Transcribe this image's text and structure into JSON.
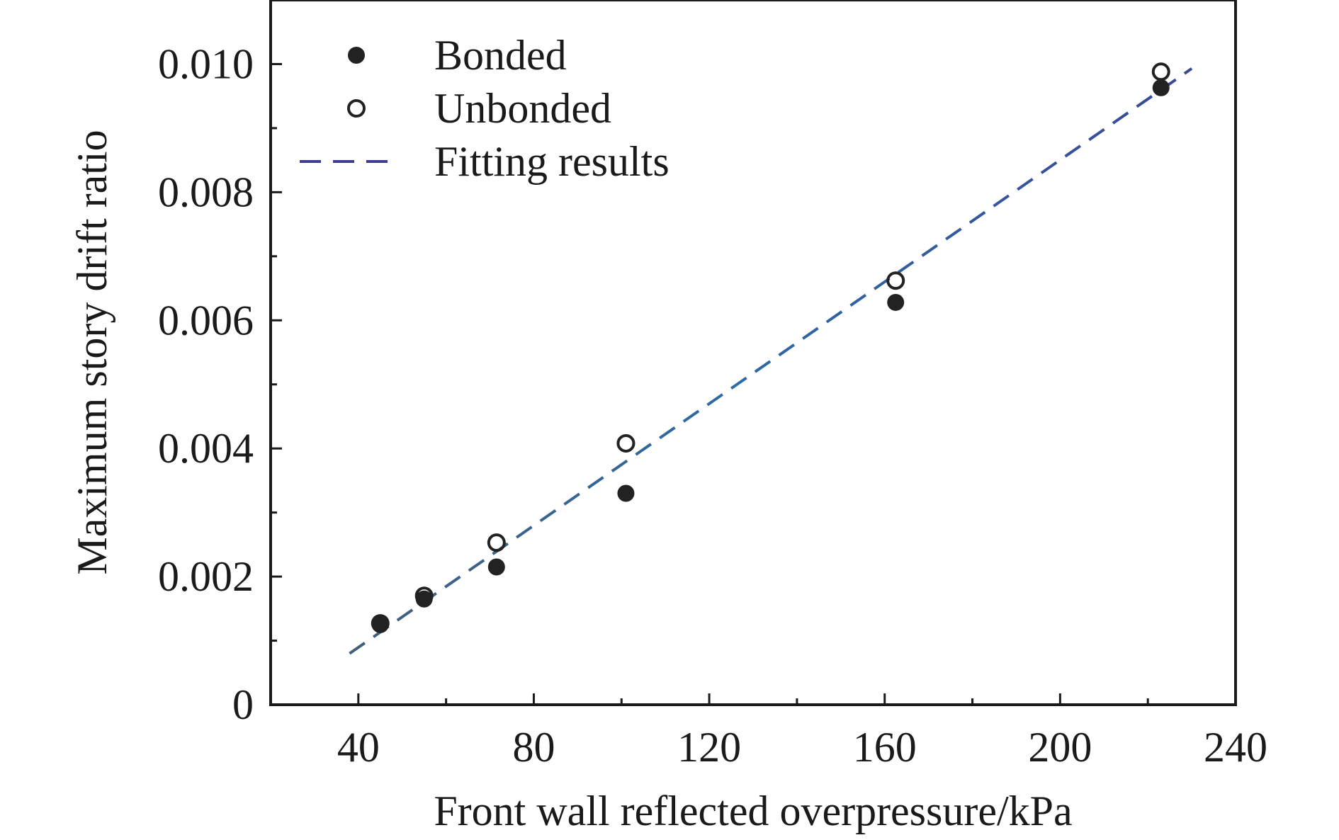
{
  "chart_data": {
    "type": "scatter",
    "title": "",
    "xlabel": "Front wall reflected overpressure/kPa",
    "ylabel": "Maximum story drift ratio",
    "xlim": [
      20,
      240
    ],
    "ylim": [
      0,
      0.011
    ],
    "x_ticks": [
      {
        "value": 40,
        "label": "40"
      },
      {
        "value": 80,
        "label": "80"
      },
      {
        "value": 120,
        "label": "120"
      },
      {
        "value": 160,
        "label": "160"
      },
      {
        "value": 200,
        "label": "200"
      },
      {
        "value": 240,
        "label": "240"
      }
    ],
    "y_ticks": [
      {
        "value": 0,
        "label": "0"
      },
      {
        "value": 0.002,
        "label": "0.002"
      },
      {
        "value": 0.004,
        "label": "0.004"
      },
      {
        "value": 0.006,
        "label": "0.006"
      },
      {
        "value": 0.008,
        "label": "0.008"
      },
      {
        "value": 0.01,
        "label": "0.010"
      }
    ],
    "grid": false,
    "legend_position": "top-left",
    "series": [
      {
        "name": "Bonded",
        "marker": "filled-circle",
        "color": "#222222",
        "points": [
          {
            "x": 45,
            "y": 0.00125
          },
          {
            "x": 55,
            "y": 0.00165
          },
          {
            "x": 71.5,
            "y": 0.00215
          },
          {
            "x": 101,
            "y": 0.0033
          },
          {
            "x": 162.5,
            "y": 0.00628
          },
          {
            "x": 223,
            "y": 0.00963
          }
        ]
      },
      {
        "name": "Unbonded",
        "marker": "open-circle",
        "color": "#222222",
        "points": [
          {
            "x": 45,
            "y": 0.00127
          },
          {
            "x": 55,
            "y": 0.0017
          },
          {
            "x": 71.5,
            "y": 0.00253
          },
          {
            "x": 101,
            "y": 0.00408
          },
          {
            "x": 162.5,
            "y": 0.00662
          },
          {
            "x": 223,
            "y": 0.00988
          }
        ]
      },
      {
        "name": "Fitting results",
        "type": "line",
        "style": "dashed",
        "color_start": "#555555",
        "color_mid": "#2e6aa6",
        "color_end": "#3d3d8f",
        "points": [
          {
            "x": 38,
            "y": 0.0008
          },
          {
            "x": 230,
            "y": 0.00993
          }
        ]
      }
    ]
  }
}
